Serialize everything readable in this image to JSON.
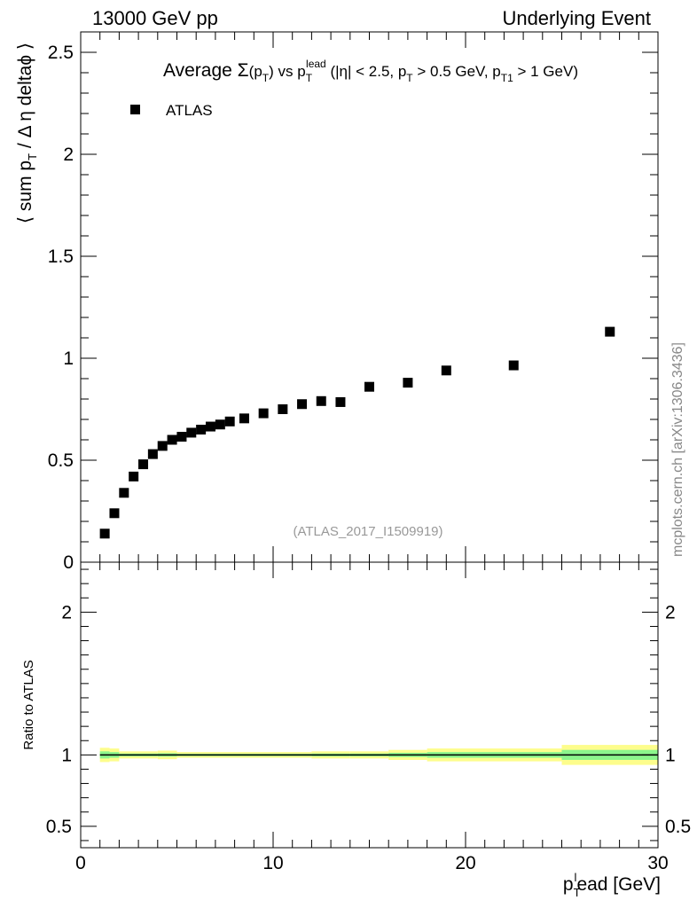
{
  "header": {
    "left": "13000 GeV pp",
    "right": "Underlying Event"
  },
  "watermark": "mcplots.cern.ch [arXiv:1306.3436]",
  "chart_data": [
    {
      "type": "scatter",
      "title": "Average Σ(p_T) vs p_T^lead (|η| < 2.5, p_T > 0.5 GeV, p_T1 > 1 GeV)",
      "ylabel": "⟨ sum p_T / Δ η deltaϕ ⟩",
      "analysis_label": "(ATLAS_2017_I1509919)",
      "xlim": [
        0,
        30
      ],
      "ylim": [
        0,
        2.6
      ],
      "yticks": [
        "0",
        "0.5",
        "1",
        "1.5",
        "2",
        "2.5"
      ],
      "legend": {
        "position": "top-left",
        "entries": [
          "ATLAS"
        ]
      },
      "series": [
        {
          "name": "ATLAS",
          "marker": "square",
          "color": "#000000",
          "x": [
            1.25,
            1.75,
            2.25,
            2.75,
            3.25,
            3.75,
            4.25,
            4.75,
            5.25,
            5.75,
            6.25,
            6.75,
            7.25,
            7.75,
            8.5,
            9.5,
            10.5,
            11.5,
            12.5,
            13.5,
            15,
            17,
            19,
            22.5,
            27.5
          ],
          "y": [
            0.14,
            0.24,
            0.34,
            0.42,
            0.48,
            0.53,
            0.57,
            0.6,
            0.615,
            0.635,
            0.65,
            0.665,
            0.675,
            0.69,
            0.705,
            0.73,
            0.75,
            0.775,
            0.79,
            0.785,
            0.86,
            0.88,
            0.94,
            0.965,
            1.13
          ]
        }
      ]
    },
    {
      "type": "area",
      "ylabel": "Ratio to ATLAS",
      "xlabel": "p_T^lead [GeV]",
      "xlim": [
        0,
        30
      ],
      "ylim": [
        0.35,
        2.35
      ],
      "xticks": [
        "0",
        "10",
        "20",
        "30"
      ],
      "yticks": [
        "0.5",
        "1",
        "2"
      ],
      "reference_line": 1,
      "colors": {
        "inner_band": "#8cf58c",
        "outer_band": "#fdfd8c"
      },
      "bands": [
        {
          "x_low": 1.0,
          "x_high": 1.5,
          "inner": [
            0.975,
            1.025
          ],
          "outer": [
            0.95,
            1.05
          ]
        },
        {
          "x_low": 1.5,
          "x_high": 2.0,
          "inner": [
            0.98,
            1.02
          ],
          "outer": [
            0.955,
            1.045
          ]
        },
        {
          "x_low": 2.0,
          "x_high": 4.0,
          "inner": [
            0.99,
            1.01
          ],
          "outer": [
            0.975,
            1.025
          ]
        },
        {
          "x_low": 4.0,
          "x_high": 5.0,
          "inner": [
            0.988,
            1.012
          ],
          "outer": [
            0.97,
            1.03
          ]
        },
        {
          "x_low": 5.0,
          "x_high": 12.0,
          "inner": [
            0.992,
            1.008
          ],
          "outer": [
            0.98,
            1.02
          ]
        },
        {
          "x_low": 12.0,
          "x_high": 14.0,
          "inner": [
            0.99,
            1.01
          ],
          "outer": [
            0.975,
            1.025
          ]
        },
        {
          "x_low": 14.0,
          "x_high": 16.0,
          "inner": [
            0.99,
            1.01
          ],
          "outer": [
            0.975,
            1.025
          ]
        },
        {
          "x_low": 16.0,
          "x_high": 18.0,
          "inner": [
            0.985,
            1.015
          ],
          "outer": [
            0.965,
            1.035
          ]
        },
        {
          "x_low": 18.0,
          "x_high": 20.0,
          "inner": [
            0.98,
            1.02
          ],
          "outer": [
            0.955,
            1.045
          ]
        },
        {
          "x_low": 20.0,
          "x_high": 25.0,
          "inner": [
            0.98,
            1.02
          ],
          "outer": [
            0.955,
            1.045
          ]
        },
        {
          "x_low": 25.0,
          "x_high": 30.0,
          "inner": [
            0.965,
            1.035
          ],
          "outer": [
            0.93,
            1.07
          ]
        }
      ]
    }
  ]
}
